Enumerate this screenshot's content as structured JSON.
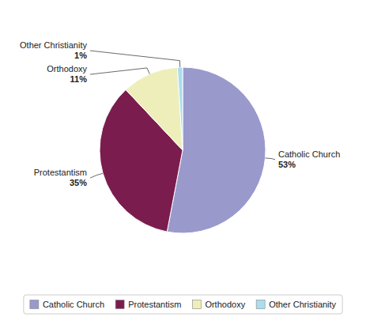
{
  "chart_data": {
    "type": "pie",
    "categories": [
      "Catholic Church",
      "Protestantism",
      "Orthodoxy",
      "Other Christianity"
    ],
    "values": [
      53,
      35,
      11,
      1
    ],
    "value_labels": [
      "53%",
      "35%",
      "11%",
      "1%"
    ],
    "colors": [
      "#9999CC",
      "#7B1C4E",
      "#EEEEBB",
      "#AADDEE"
    ],
    "data_labels": true,
    "legend": "bottom"
  }
}
